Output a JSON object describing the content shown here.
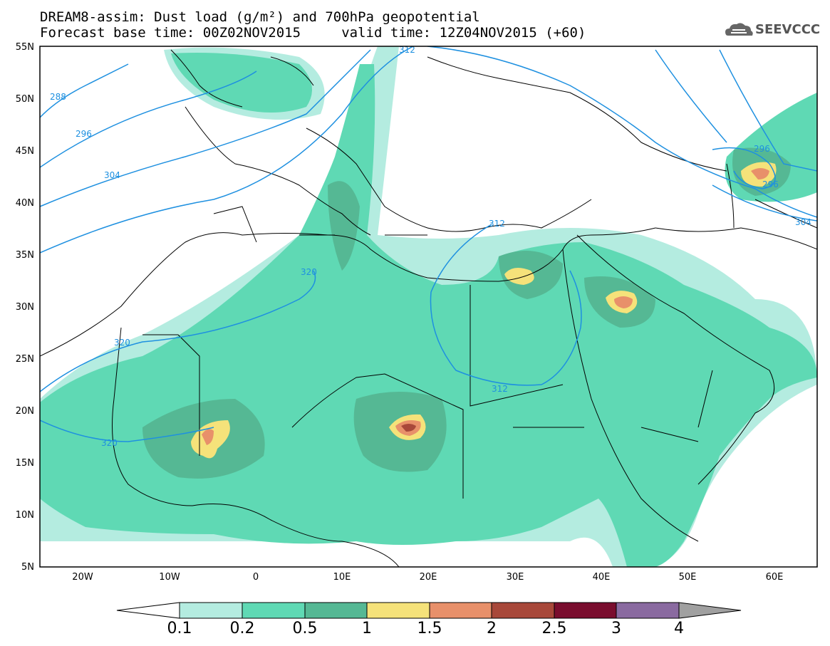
{
  "header": {
    "line1": "DREAM8-assim: Dust load (g/m²) and 700hPa geopotential",
    "line2": "Forecast base time: 00Z02NOV2015     valid time: 12Z04NOV2015 (+60)",
    "logo_text": "SEEVCCC"
  },
  "map": {
    "lon_range": [
      -25,
      65
    ],
    "lat_range": [
      5,
      55
    ],
    "lat_ticks": [
      "55N",
      "50N",
      "45N",
      "40N",
      "35N",
      "30N",
      "25N",
      "20N",
      "15N",
      "10N",
      "5N"
    ],
    "lon_ticks": [
      "20W",
      "10W",
      "0",
      "10E",
      "20E",
      "30E",
      "40E",
      "50E",
      "60E"
    ],
    "contour_color": "#1e90e0",
    "contour_labels": [
      "288",
      "296",
      "304",
      "312",
      "312",
      "312",
      "320",
      "320",
      "320",
      "296",
      "304",
      "296"
    ]
  },
  "colorbar": {
    "labels": [
      "0.1",
      "0.2",
      "0.5",
      "1",
      "1.5",
      "2",
      "2.5",
      "3",
      "4"
    ],
    "colors": [
      "#b4ece0",
      "#5fd9b4",
      "#55b894",
      "#f5e27a",
      "#e8906a",
      "#a8483a",
      "#7a0d2e",
      "#8a6aa0"
    ],
    "below_color": "#ffffff",
    "above_color": "#a0a0a0"
  }
}
